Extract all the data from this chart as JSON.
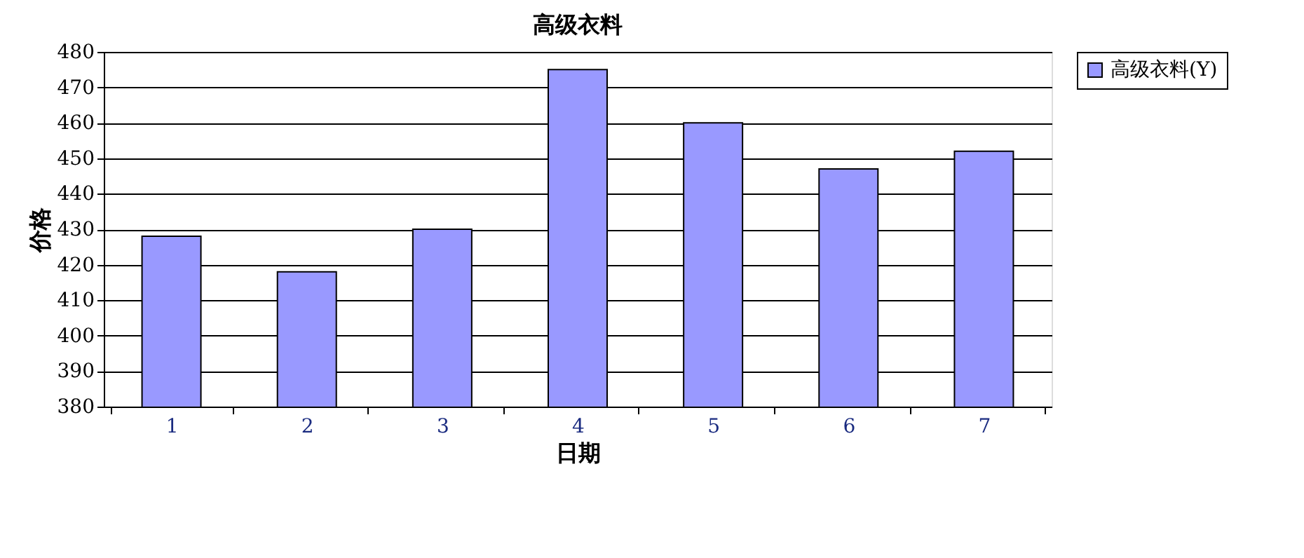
{
  "chart_data": {
    "type": "bar",
    "title": "高级衣料",
    "xlabel": "日期",
    "ylabel": "价格",
    "categories": [
      "1",
      "2",
      "3",
      "4",
      "5",
      "6",
      "7"
    ],
    "series": [
      {
        "name": "高级衣料(Y)",
        "color": "#9999ff",
        "values": [
          428,
          418,
          430,
          475,
          460,
          447,
          452
        ]
      }
    ],
    "ylim": [
      380,
      480
    ],
    "yticks": [
      380,
      390,
      400,
      410,
      420,
      430,
      440,
      450,
      460,
      470,
      480
    ],
    "grid": "y",
    "legend": "right"
  }
}
